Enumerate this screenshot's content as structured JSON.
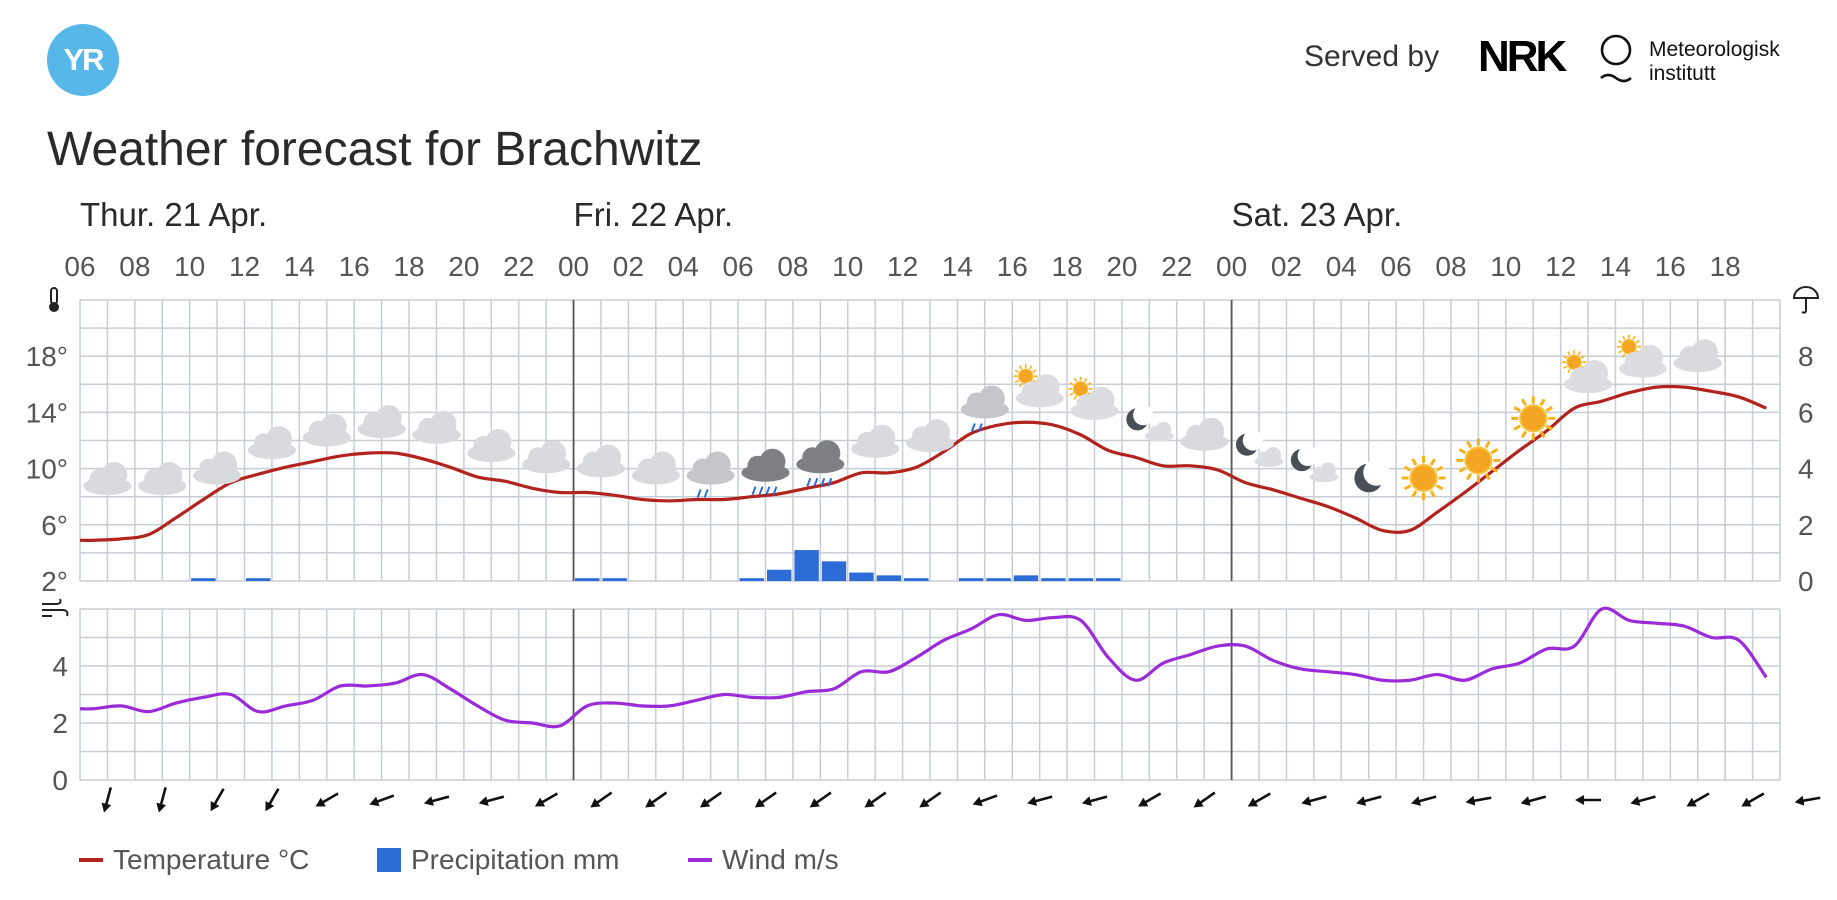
{
  "header": {
    "logo_text": "YR",
    "served_by": "Served by",
    "nrk_text": "NRK",
    "met_line1": "Meteorologisk",
    "met_line2": "institutt",
    "title": "Weather forecast for Brachwitz"
  },
  "colors": {
    "temperature": "#b3231e",
    "precipitation": "#2d6bd6",
    "wind": "#9b2bd9",
    "grid": "#c7cdd6",
    "logo": "#56b7e8"
  },
  "legend": {
    "temperature": "Temperature °C",
    "precipitation": "Precipitation mm",
    "wind": "Wind m/s"
  },
  "chart_data": {
    "type": "line",
    "days": [
      {
        "label": "Thur. 21 Apr.",
        "start_hour_index": 0
      },
      {
        "label": "Fri. 22 Apr.",
        "start_hour_index": 18
      },
      {
        "label": "Sat. 23 Apr.",
        "start_hour_index": 42
      }
    ],
    "hour_ticks": [
      "06",
      "08",
      "10",
      "12",
      "14",
      "16",
      "18",
      "20",
      "22",
      "00",
      "02",
      "04",
      "06",
      "08",
      "10",
      "12",
      "14",
      "16",
      "18",
      "20",
      "22",
      "00",
      "02",
      "04",
      "06",
      "08",
      "10",
      "12",
      "14",
      "16",
      "18"
    ],
    "x_hours_from_start": [
      0,
      1,
      2,
      3,
      4,
      5,
      6,
      7,
      8,
      9,
      10,
      11,
      12,
      13,
      14,
      15,
      16,
      17,
      18,
      19,
      20,
      21,
      22,
      23,
      24,
      25,
      26,
      27,
      28,
      29,
      30,
      31,
      32,
      33,
      34,
      35,
      36,
      37,
      38,
      39,
      40,
      41,
      42,
      43,
      44,
      45,
      46,
      47,
      48,
      49,
      50,
      51,
      52,
      53,
      54,
      55,
      56,
      57,
      58,
      59,
      60,
      61
    ],
    "temperature": {
      "name": "Temperature °C",
      "ylim": [
        2,
        22
      ],
      "yticks": [
        "2°",
        "6°",
        "10°",
        "14°",
        "18°"
      ],
      "values": [
        4.9,
        5.0,
        5.3,
        6.5,
        7.8,
        9.0,
        9.6,
        10.1,
        10.5,
        10.9,
        11.1,
        11.1,
        10.7,
        10.1,
        9.4,
        9.1,
        8.6,
        8.3,
        8.3,
        8.1,
        7.8,
        7.7,
        7.8,
        7.8,
        8.0,
        8.2,
        8.6,
        9.0,
        9.7,
        9.7,
        10.1,
        11.2,
        12.5,
        13.1,
        13.3,
        13.1,
        12.4,
        11.3,
        10.8,
        10.2,
        10.2,
        9.9,
        9.0,
        8.5,
        7.9,
        7.3,
        6.5,
        5.6,
        5.6,
        6.9,
        8.3,
        9.8,
        11.3,
        12.7,
        14.3,
        14.8,
        15.4,
        15.8,
        15.8,
        15.5,
        15.1,
        14.3
      ]
    },
    "precipitation": {
      "name": "Precipitation mm",
      "ylim": [
        0,
        10
      ],
      "yticks": [
        "0",
        "2",
        "4",
        "6",
        "8"
      ],
      "values": [
        0,
        0,
        0,
        0,
        0.1,
        0,
        0.1,
        0,
        0,
        0,
        0,
        0,
        0,
        0,
        0,
        0,
        0,
        0,
        0.1,
        0.1,
        0,
        0,
        0,
        0,
        0.1,
        0.4,
        1.1,
        0.7,
        0.3,
        0.2,
        0.1,
        0,
        0.1,
        0.1,
        0.2,
        0.1,
        0.1,
        0.1,
        0,
        0,
        0,
        0,
        0,
        0,
        0,
        0,
        0,
        0,
        0,
        0,
        0,
        0,
        0,
        0,
        0,
        0,
        0,
        0,
        0,
        0,
        0,
        0
      ]
    },
    "wind": {
      "name": "Wind m/s",
      "ylim": [
        0,
        6
      ],
      "yticks": [
        "0",
        "2",
        "4"
      ],
      "values": [
        2.5,
        2.6,
        2.4,
        2.7,
        2.9,
        3.0,
        2.4,
        2.6,
        2.8,
        3.3,
        3.3,
        3.4,
        3.7,
        3.2,
        2.6,
        2.1,
        2.0,
        1.9,
        2.6,
        2.7,
        2.6,
        2.6,
        2.8,
        3.0,
        2.9,
        2.9,
        3.1,
        3.2,
        3.8,
        3.8,
        4.3,
        4.9,
        5.3,
        5.8,
        5.6,
        5.7,
        5.6,
        4.3,
        3.5,
        4.1,
        4.4,
        4.7,
        4.7,
        4.2,
        3.9,
        3.8,
        3.7,
        3.5,
        3.5,
        3.7,
        3.5,
        3.9,
        4.1,
        4.6,
        4.7,
        6.0,
        5.6,
        5.5,
        5.4,
        5.0,
        4.9,
        3.6
      ]
    },
    "wind_direction_deg": [
      15,
      15,
      30,
      30,
      60,
      70,
      75,
      75,
      60,
      55,
      55,
      55,
      55,
      55,
      55,
      55,
      70,
      75,
      75,
      60,
      55,
      60,
      75,
      75,
      75,
      80,
      75,
      90,
      75,
      60,
      60,
      80
    ],
    "symbols": [
      {
        "slot": 0,
        "icon": "cloud-icon"
      },
      {
        "slot": 2,
        "icon": "cloud-icon"
      },
      {
        "slot": 4,
        "icon": "cloud-icon"
      },
      {
        "slot": 6,
        "icon": "cloud-icon"
      },
      {
        "slot": 8,
        "icon": "cloud-icon"
      },
      {
        "slot": 10,
        "icon": "cloud-icon"
      },
      {
        "slot": 12,
        "icon": "cloud-icon"
      },
      {
        "slot": 14,
        "icon": "cloud-icon"
      },
      {
        "slot": 16,
        "icon": "cloud-icon"
      },
      {
        "slot": 18,
        "icon": "cloud-icon"
      },
      {
        "slot": 20,
        "icon": "cloud-icon"
      },
      {
        "slot": 22,
        "icon": "light-rain-icon"
      },
      {
        "slot": 24,
        "icon": "rain-icon"
      },
      {
        "slot": 26,
        "icon": "rain-icon"
      },
      {
        "slot": 28,
        "icon": "cloud-icon"
      },
      {
        "slot": 30,
        "icon": "cloud-icon"
      },
      {
        "slot": 32,
        "icon": "light-rain-icon"
      },
      {
        "slot": 34,
        "icon": "partly-cloudy-day-icon"
      },
      {
        "slot": 36,
        "icon": "partly-cloudy-day-icon"
      },
      {
        "slot": 38,
        "icon": "partly-cloudy-night-icon"
      },
      {
        "slot": 40,
        "icon": "cloud-icon"
      },
      {
        "slot": 42,
        "icon": "partly-cloudy-night-icon"
      },
      {
        "slot": 44,
        "icon": "partly-cloudy-night-icon"
      },
      {
        "slot": 46,
        "icon": "moon-icon"
      },
      {
        "slot": 48,
        "icon": "sun-icon"
      },
      {
        "slot": 50,
        "icon": "sun-icon"
      },
      {
        "slot": 52,
        "icon": "sun-icon"
      },
      {
        "slot": 54,
        "icon": "partly-cloudy-day-icon"
      },
      {
        "slot": 56,
        "icon": "partly-cloudy-day-icon"
      },
      {
        "slot": 58,
        "icon": "cloud-icon"
      }
    ]
  }
}
